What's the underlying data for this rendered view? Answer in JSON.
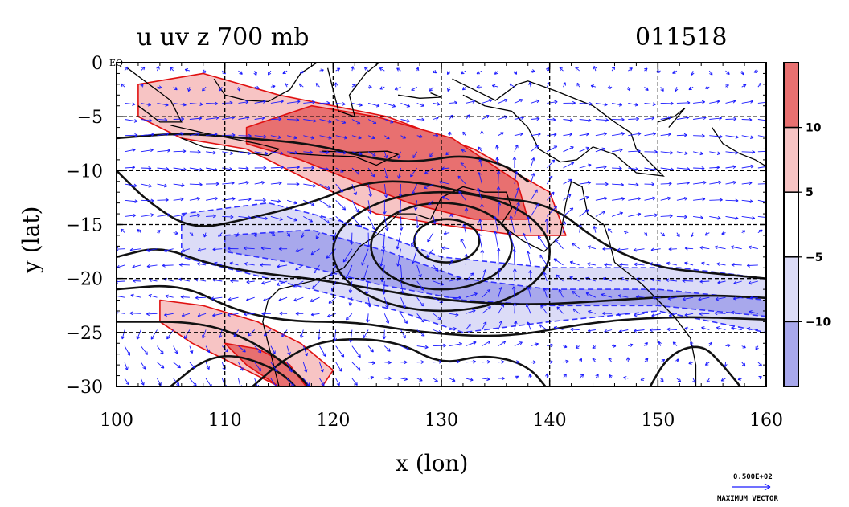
{
  "chart_data": {
    "type": "heatmap",
    "title": "u uv z 700 mb",
    "date_label": "011518",
    "xlabel": "x (lon)",
    "ylabel": "y (lat)",
    "xlim": [
      100,
      160
    ],
    "ylim": [
      -30,
      0
    ],
    "x_ticks": [
      100,
      110,
      120,
      130,
      140,
      150,
      160
    ],
    "y_ticks": [
      0,
      -5,
      -10,
      -15,
      -20,
      -25,
      -30
    ],
    "y_tick_labels": [
      "0",
      "−5",
      "−10",
      "−15",
      "−20",
      "−25",
      "−30"
    ],
    "eq_label": "EQ",
    "grid": true,
    "colorbar": {
      "levels": [
        {
          "color": "#e87070",
          "label": "10"
        },
        {
          "color": "#f7c4c4",
          "label": "5"
        },
        {
          "color": "#ffffff",
          "label": "−5"
        },
        {
          "color": "#dcdcf7",
          "label": "−10"
        },
        {
          "color": "#a8a8ec",
          "label": ""
        }
      ]
    },
    "shaded_regions": [
      {
        "name": "northern-westerly-band-outer",
        "level": 5,
        "color": "#f7c4c4",
        "polygon": [
          [
            102,
            -2
          ],
          [
            108,
            -1
          ],
          [
            115,
            -3
          ],
          [
            125,
            -5
          ],
          [
            133,
            -8
          ],
          [
            140,
            -12
          ],
          [
            141.5,
            -16
          ],
          [
            137,
            -16
          ],
          [
            130,
            -15
          ],
          [
            124,
            -14
          ],
          [
            118,
            -11
          ],
          [
            112,
            -8
          ],
          [
            106,
            -7
          ],
          [
            102,
            -5
          ]
        ]
      },
      {
        "name": "northern-westerly-band-core",
        "level": 10,
        "color": "#e87070",
        "polygon": [
          [
            112,
            -6
          ],
          [
            118,
            -4
          ],
          [
            124,
            -5
          ],
          [
            131,
            -7
          ],
          [
            137,
            -11
          ],
          [
            138,
            -14.5
          ],
          [
            133,
            -14.5
          ],
          [
            127,
            -13
          ],
          [
            122,
            -11
          ],
          [
            117,
            -9
          ],
          [
            112,
            -7.5
          ]
        ]
      },
      {
        "name": "southwest-westerly-outer",
        "level": 5,
        "color": "#f7c4c4",
        "polygon": [
          [
            104,
            -22
          ],
          [
            108,
            -22.5
          ],
          [
            113,
            -24
          ],
          [
            117,
            -26
          ],
          [
            120,
            -28.5
          ],
          [
            119,
            -30
          ],
          [
            115,
            -30
          ],
          [
            111,
            -28
          ],
          [
            107,
            -26
          ],
          [
            104,
            -24
          ]
        ]
      },
      {
        "name": "southwest-westerly-core",
        "level": 10,
        "color": "#e87070",
        "polygon": [
          [
            110,
            -26
          ],
          [
            113,
            -26.5
          ],
          [
            116,
            -28
          ],
          [
            117.5,
            -30
          ],
          [
            115,
            -30
          ],
          [
            112,
            -28
          ]
        ]
      },
      {
        "name": "easterly-band-outer",
        "level": -5,
        "color": "#dcdcf7",
        "polygon": [
          [
            106,
            -14
          ],
          [
            114,
            -13
          ],
          [
            122,
            -15
          ],
          [
            130,
            -18
          ],
          [
            140,
            -19
          ],
          [
            152,
            -19
          ],
          [
            160,
            -20
          ],
          [
            160,
            -25
          ],
          [
            150,
            -23
          ],
          [
            140,
            -24
          ],
          [
            132,
            -25
          ],
          [
            126,
            -23
          ],
          [
            118,
            -21
          ],
          [
            110,
            -19
          ],
          [
            106,
            -18
          ]
        ]
      },
      {
        "name": "easterly-band-core",
        "level": -10,
        "color": "#a8a8ec",
        "polygon": [
          [
            110,
            -16
          ],
          [
            118,
            -15.5
          ],
          [
            125,
            -17.5
          ],
          [
            132,
            -20
          ],
          [
            140,
            -21
          ],
          [
            150,
            -21
          ],
          [
            160,
            -22
          ],
          [
            160,
            -23.5
          ],
          [
            150,
            -22.5
          ],
          [
            140,
            -22.5
          ],
          [
            132,
            -22
          ],
          [
            124,
            -20.5
          ],
          [
            116,
            -18.5
          ],
          [
            110,
            -17.5
          ]
        ]
      }
    ],
    "height_contours": [
      {
        "name": "low-center",
        "center": [
          130.5,
          -16.5
        ],
        "rx": 3,
        "ry": 2
      },
      {
        "name": "low-ring-2",
        "center": [
          130,
          -17
        ],
        "rx": 6.5,
        "ry": 4
      },
      {
        "name": "low-ring-3",
        "center": [
          130,
          -17.5
        ],
        "rx": 10,
        "ry": 5.5
      }
    ],
    "vectors": {
      "spacing_deg": 1.5,
      "color": "#1a1aff",
      "reference_label": "0.500E+02",
      "reference_caption": "MAXIMUM VECTOR"
    }
  }
}
